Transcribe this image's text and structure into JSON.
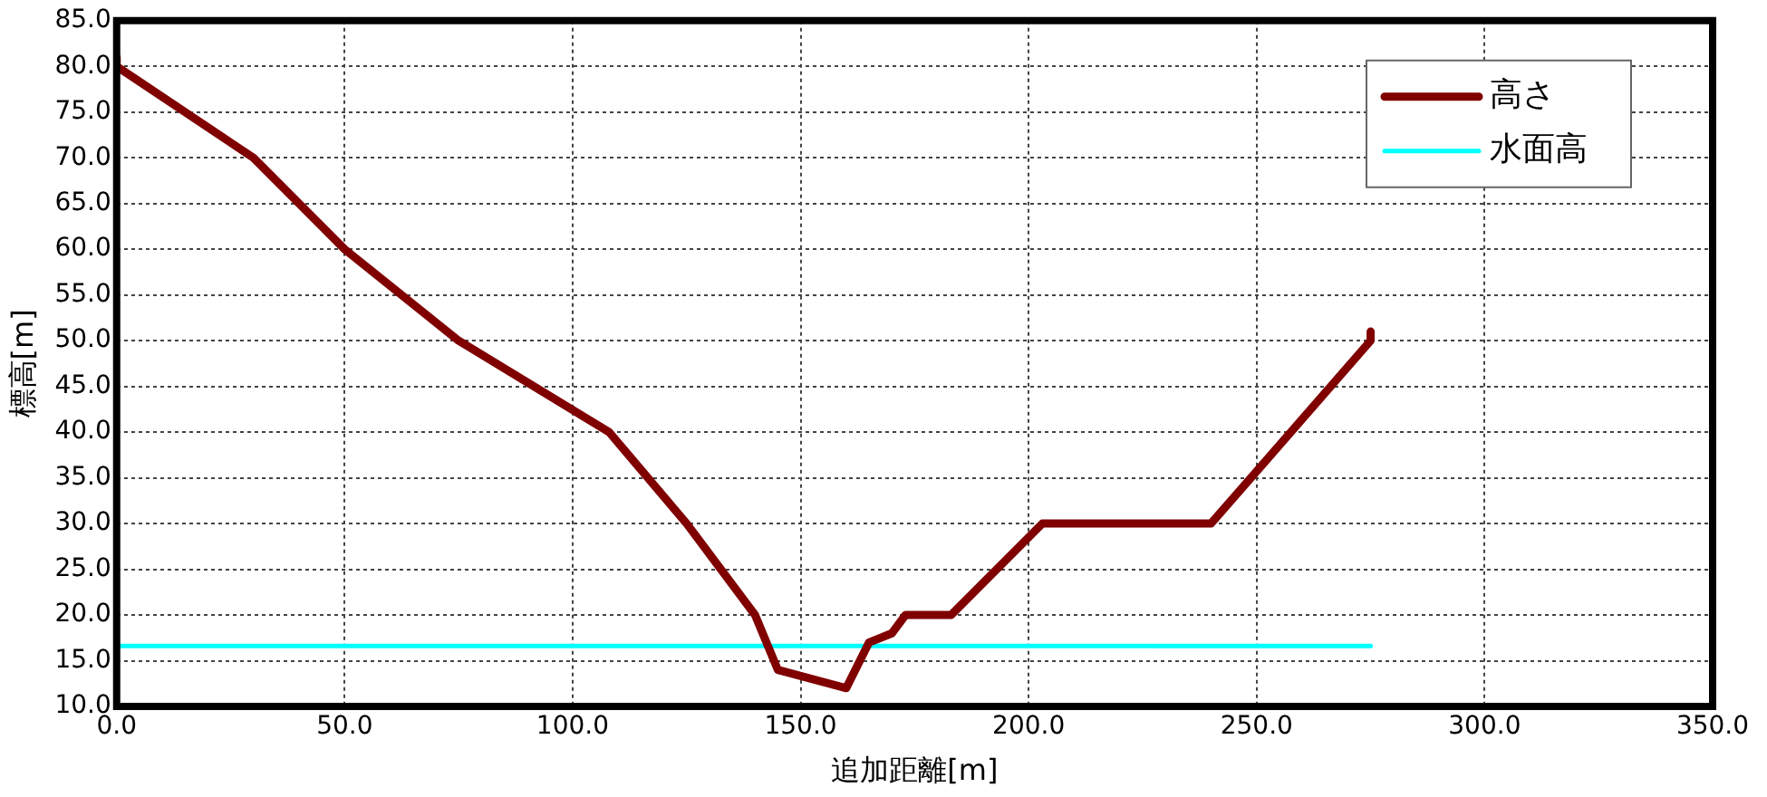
{
  "chart_data": {
    "type": "line",
    "xlabel": "追加距離[m]",
    "ylabel": "標高[m]",
    "xlim": [
      0,
      350
    ],
    "ylim": [
      10,
      85
    ],
    "xticks": [
      {
        "value": 0,
        "label": "0.0"
      },
      {
        "value": 50,
        "label": "50.0"
      },
      {
        "value": 100,
        "label": "100.0"
      },
      {
        "value": 150,
        "label": "150.0"
      },
      {
        "value": 200,
        "label": "200.0"
      },
      {
        "value": 250,
        "label": "250.0"
      },
      {
        "value": 300,
        "label": "300.0"
      },
      {
        "value": 350,
        "label": "350.0"
      }
    ],
    "yticks": [
      {
        "value": 10,
        "label": "10.0"
      },
      {
        "value": 15,
        "label": "15.0"
      },
      {
        "value": 20,
        "label": "20.0"
      },
      {
        "value": 25,
        "label": "25.0"
      },
      {
        "value": 30,
        "label": "30.0"
      },
      {
        "value": 35,
        "label": "35.0"
      },
      {
        "value": 40,
        "label": "40.0"
      },
      {
        "value": 45,
        "label": "45.0"
      },
      {
        "value": 50,
        "label": "50.0"
      },
      {
        "value": 55,
        "label": "55.0"
      },
      {
        "value": 60,
        "label": "60.0"
      },
      {
        "value": 65,
        "label": "65.0"
      },
      {
        "value": 70,
        "label": "70.0"
      },
      {
        "value": 75,
        "label": "75.0"
      },
      {
        "value": 80,
        "label": "80.0"
      },
      {
        "value": 85,
        "label": "85.0"
      }
    ],
    "grid": true,
    "legend": "top right",
    "marker": "none",
    "line_style": "solid",
    "series": [
      {
        "name": "高さ",
        "color": "#800000",
        "x": [
          0,
          0,
          30,
          50,
          75,
          108,
          125,
          140,
          145,
          160,
          165,
          170,
          173,
          183,
          203,
          240,
          275,
          275
        ],
        "values": [
          81,
          80,
          70,
          60,
          50,
          40,
          30,
          20,
          14,
          12,
          17,
          18,
          20,
          20,
          30,
          30,
          50,
          51
        ]
      },
      {
        "name": "水面高",
        "color": "#00ffff",
        "x": [
          0,
          275
        ],
        "values": [
          16.6,
          16.6
        ]
      }
    ]
  }
}
